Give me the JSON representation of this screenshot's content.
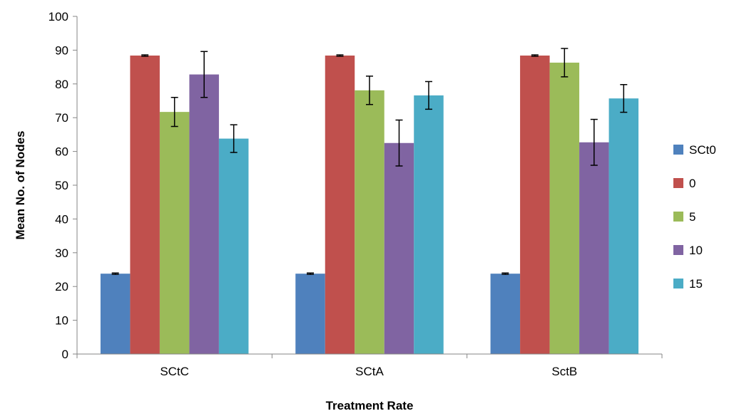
{
  "chart_data": {
    "type": "bar",
    "title": "",
    "xlabel": "Treatment Rate",
    "ylabel": "Mean No. of Nodes",
    "ylim": [
      0,
      100
    ],
    "yticks": [
      "0",
      "10",
      "20",
      "30",
      "40",
      "50",
      "60",
      "70",
      "80",
      "90",
      "100"
    ],
    "categories": [
      "SCtC",
      "SCtA",
      "SctB"
    ],
    "grid": false,
    "legend_position": "right",
    "series": [
      {
        "name": "SCt0",
        "color": "#4F81BD",
        "values": [
          23.8,
          23.8,
          23.8
        ],
        "errors": [
          0.2,
          0.2,
          0.2
        ]
      },
      {
        "name": "0",
        "color": "#C0504D",
        "values": [
          88.4,
          88.4,
          88.4
        ],
        "errors": [
          0.2,
          0.2,
          0.2
        ]
      },
      {
        "name": "5",
        "color": "#9BBB59",
        "values": [
          71.7,
          78.1,
          86.3
        ],
        "errors": [
          4.3,
          4.2,
          4.2
        ]
      },
      {
        "name": "10",
        "color": "#8064A2",
        "values": [
          82.8,
          62.5,
          62.7
        ],
        "errors": [
          6.8,
          6.8,
          6.8
        ]
      },
      {
        "name": "15",
        "color": "#4BACC6",
        "values": [
          63.8,
          76.6,
          75.7
        ],
        "errors": [
          4.1,
          4.1,
          4.1
        ]
      }
    ]
  }
}
